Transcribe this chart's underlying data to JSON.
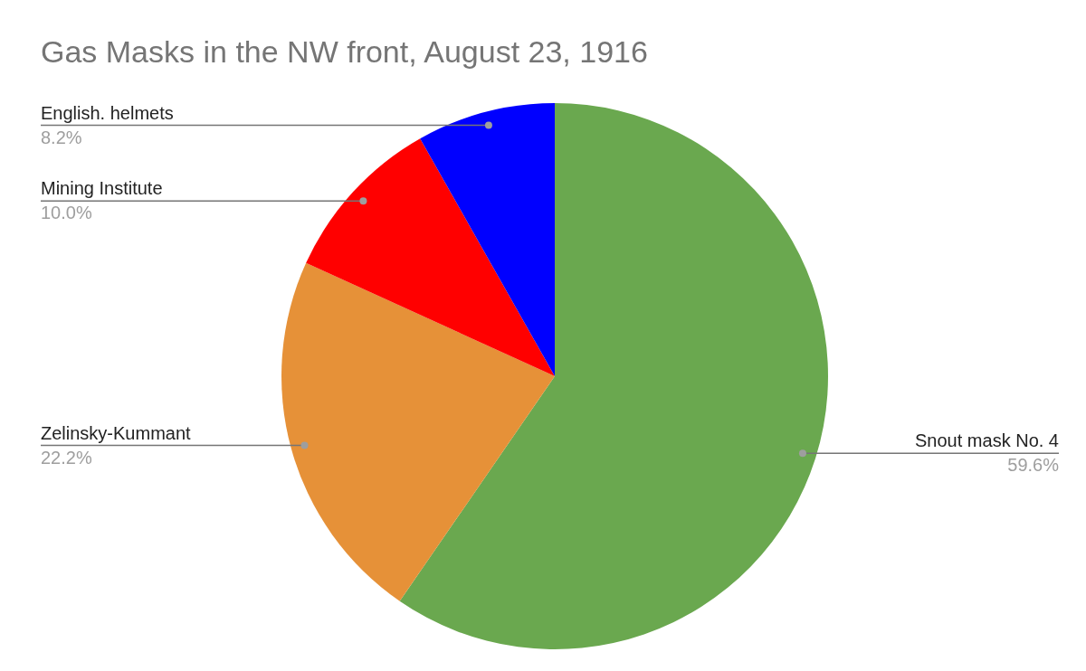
{
  "chart_data": {
    "type": "pie",
    "title": "Gas Masks in the NW front, August 23, 1916",
    "categories": [
      "Snout mask No. 4",
      "Zelinsky-Kummant",
      "Mining Institute",
      "English. helmets"
    ],
    "values": [
      59.6,
      22.2,
      10.0,
      8.2
    ],
    "value_labels": [
      "59.6%",
      "22.2%",
      "10.0%",
      "8.2%"
    ],
    "colors": [
      "#6aa84f",
      "#e69138",
      "#ff0000",
      "#0000ff"
    ],
    "legend": false
  }
}
